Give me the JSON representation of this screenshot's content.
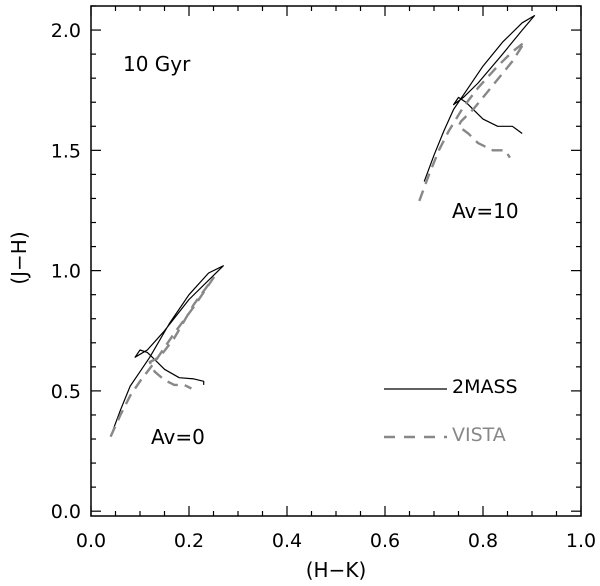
{
  "chart_data": {
    "type": "line",
    "title": "",
    "xlabel": "(H−K)",
    "ylabel": "(J−H)",
    "xlim": [
      0.0,
      1.0
    ],
    "ylim": [
      -0.02,
      2.1
    ],
    "xticks": [
      0.0,
      0.2,
      0.4,
      0.6,
      0.8,
      1.0
    ],
    "xtick_labels": [
      "0.0",
      "0.2",
      "0.4",
      "0.6",
      "0.8",
      "1.0"
    ],
    "yticks": [
      0.0,
      0.5,
      1.0,
      1.5,
      2.0
    ],
    "ytick_labels": [
      "0.0",
      "0.5",
      "1.0",
      "1.5",
      "2.0"
    ],
    "grid": false,
    "annotations": {
      "age": "10 Gyr",
      "av0": "Av=0",
      "av10": "Av=10"
    },
    "legend": {
      "placement": "bottom-right",
      "entries": [
        {
          "label": "2MASS",
          "style": "solid",
          "color": "#000000"
        },
        {
          "label": "VISTA",
          "style": "dashed",
          "color": "#888888"
        }
      ]
    },
    "series": [
      {
        "name": "2MASS (Av=0)",
        "style": "solid",
        "color": "#000000",
        "x": [
          0.04,
          0.06,
          0.08,
          0.1,
          0.12,
          0.16,
          0.2,
          0.24,
          0.27,
          0.25,
          0.2,
          0.15,
          0.115,
          0.09,
          0.1,
          0.115,
          0.125,
          0.15,
          0.18,
          0.21,
          0.23,
          0.23
        ],
        "y": [
          0.31,
          0.42,
          0.52,
          0.58,
          0.64,
          0.78,
          0.9,
          0.99,
          1.02,
          0.98,
          0.88,
          0.75,
          0.67,
          0.64,
          0.67,
          0.66,
          0.64,
          0.59,
          0.555,
          0.55,
          0.54,
          0.525
        ]
      },
      {
        "name": "VISTA (Av=0)",
        "style": "dashed",
        "color": "#888888",
        "x": [
          0.04,
          0.06,
          0.08,
          0.1,
          0.13,
          0.17,
          0.21,
          0.25,
          0.21,
          0.17,
          0.14,
          0.12,
          0.13,
          0.15,
          0.17,
          0.19,
          0.205
        ],
        "y": [
          0.31,
          0.4,
          0.48,
          0.54,
          0.62,
          0.74,
          0.85,
          0.97,
          0.86,
          0.72,
          0.64,
          0.62,
          0.58,
          0.545,
          0.525,
          0.525,
          0.51
        ]
      },
      {
        "name": "2MASS (Av=10)",
        "style": "solid",
        "color": "#000000",
        "x": [
          0.68,
          0.7,
          0.72,
          0.74,
          0.77,
          0.8,
          0.84,
          0.88,
          0.905,
          0.88,
          0.84,
          0.79,
          0.76,
          0.74,
          0.75,
          0.765,
          0.78,
          0.8,
          0.83,
          0.86,
          0.88
        ],
        "y": [
          1.37,
          1.48,
          1.58,
          1.67,
          1.76,
          1.85,
          1.95,
          2.03,
          2.06,
          2.0,
          1.9,
          1.78,
          1.72,
          1.69,
          1.72,
          1.7,
          1.67,
          1.63,
          1.6,
          1.6,
          1.57
        ]
      },
      {
        "name": "VISTA (Av=10)",
        "style": "dashed",
        "color": "#888888",
        "x": [
          0.67,
          0.69,
          0.71,
          0.73,
          0.76,
          0.79,
          0.83,
          0.86,
          0.885,
          0.86,
          0.82,
          0.78,
          0.755,
          0.75,
          0.77,
          0.79,
          0.82,
          0.845,
          0.855
        ],
        "y": [
          1.29,
          1.4,
          1.5,
          1.58,
          1.68,
          1.76,
          1.85,
          1.91,
          1.95,
          1.87,
          1.77,
          1.67,
          1.62,
          1.6,
          1.57,
          1.53,
          1.5,
          1.5,
          1.47
        ]
      }
    ]
  }
}
